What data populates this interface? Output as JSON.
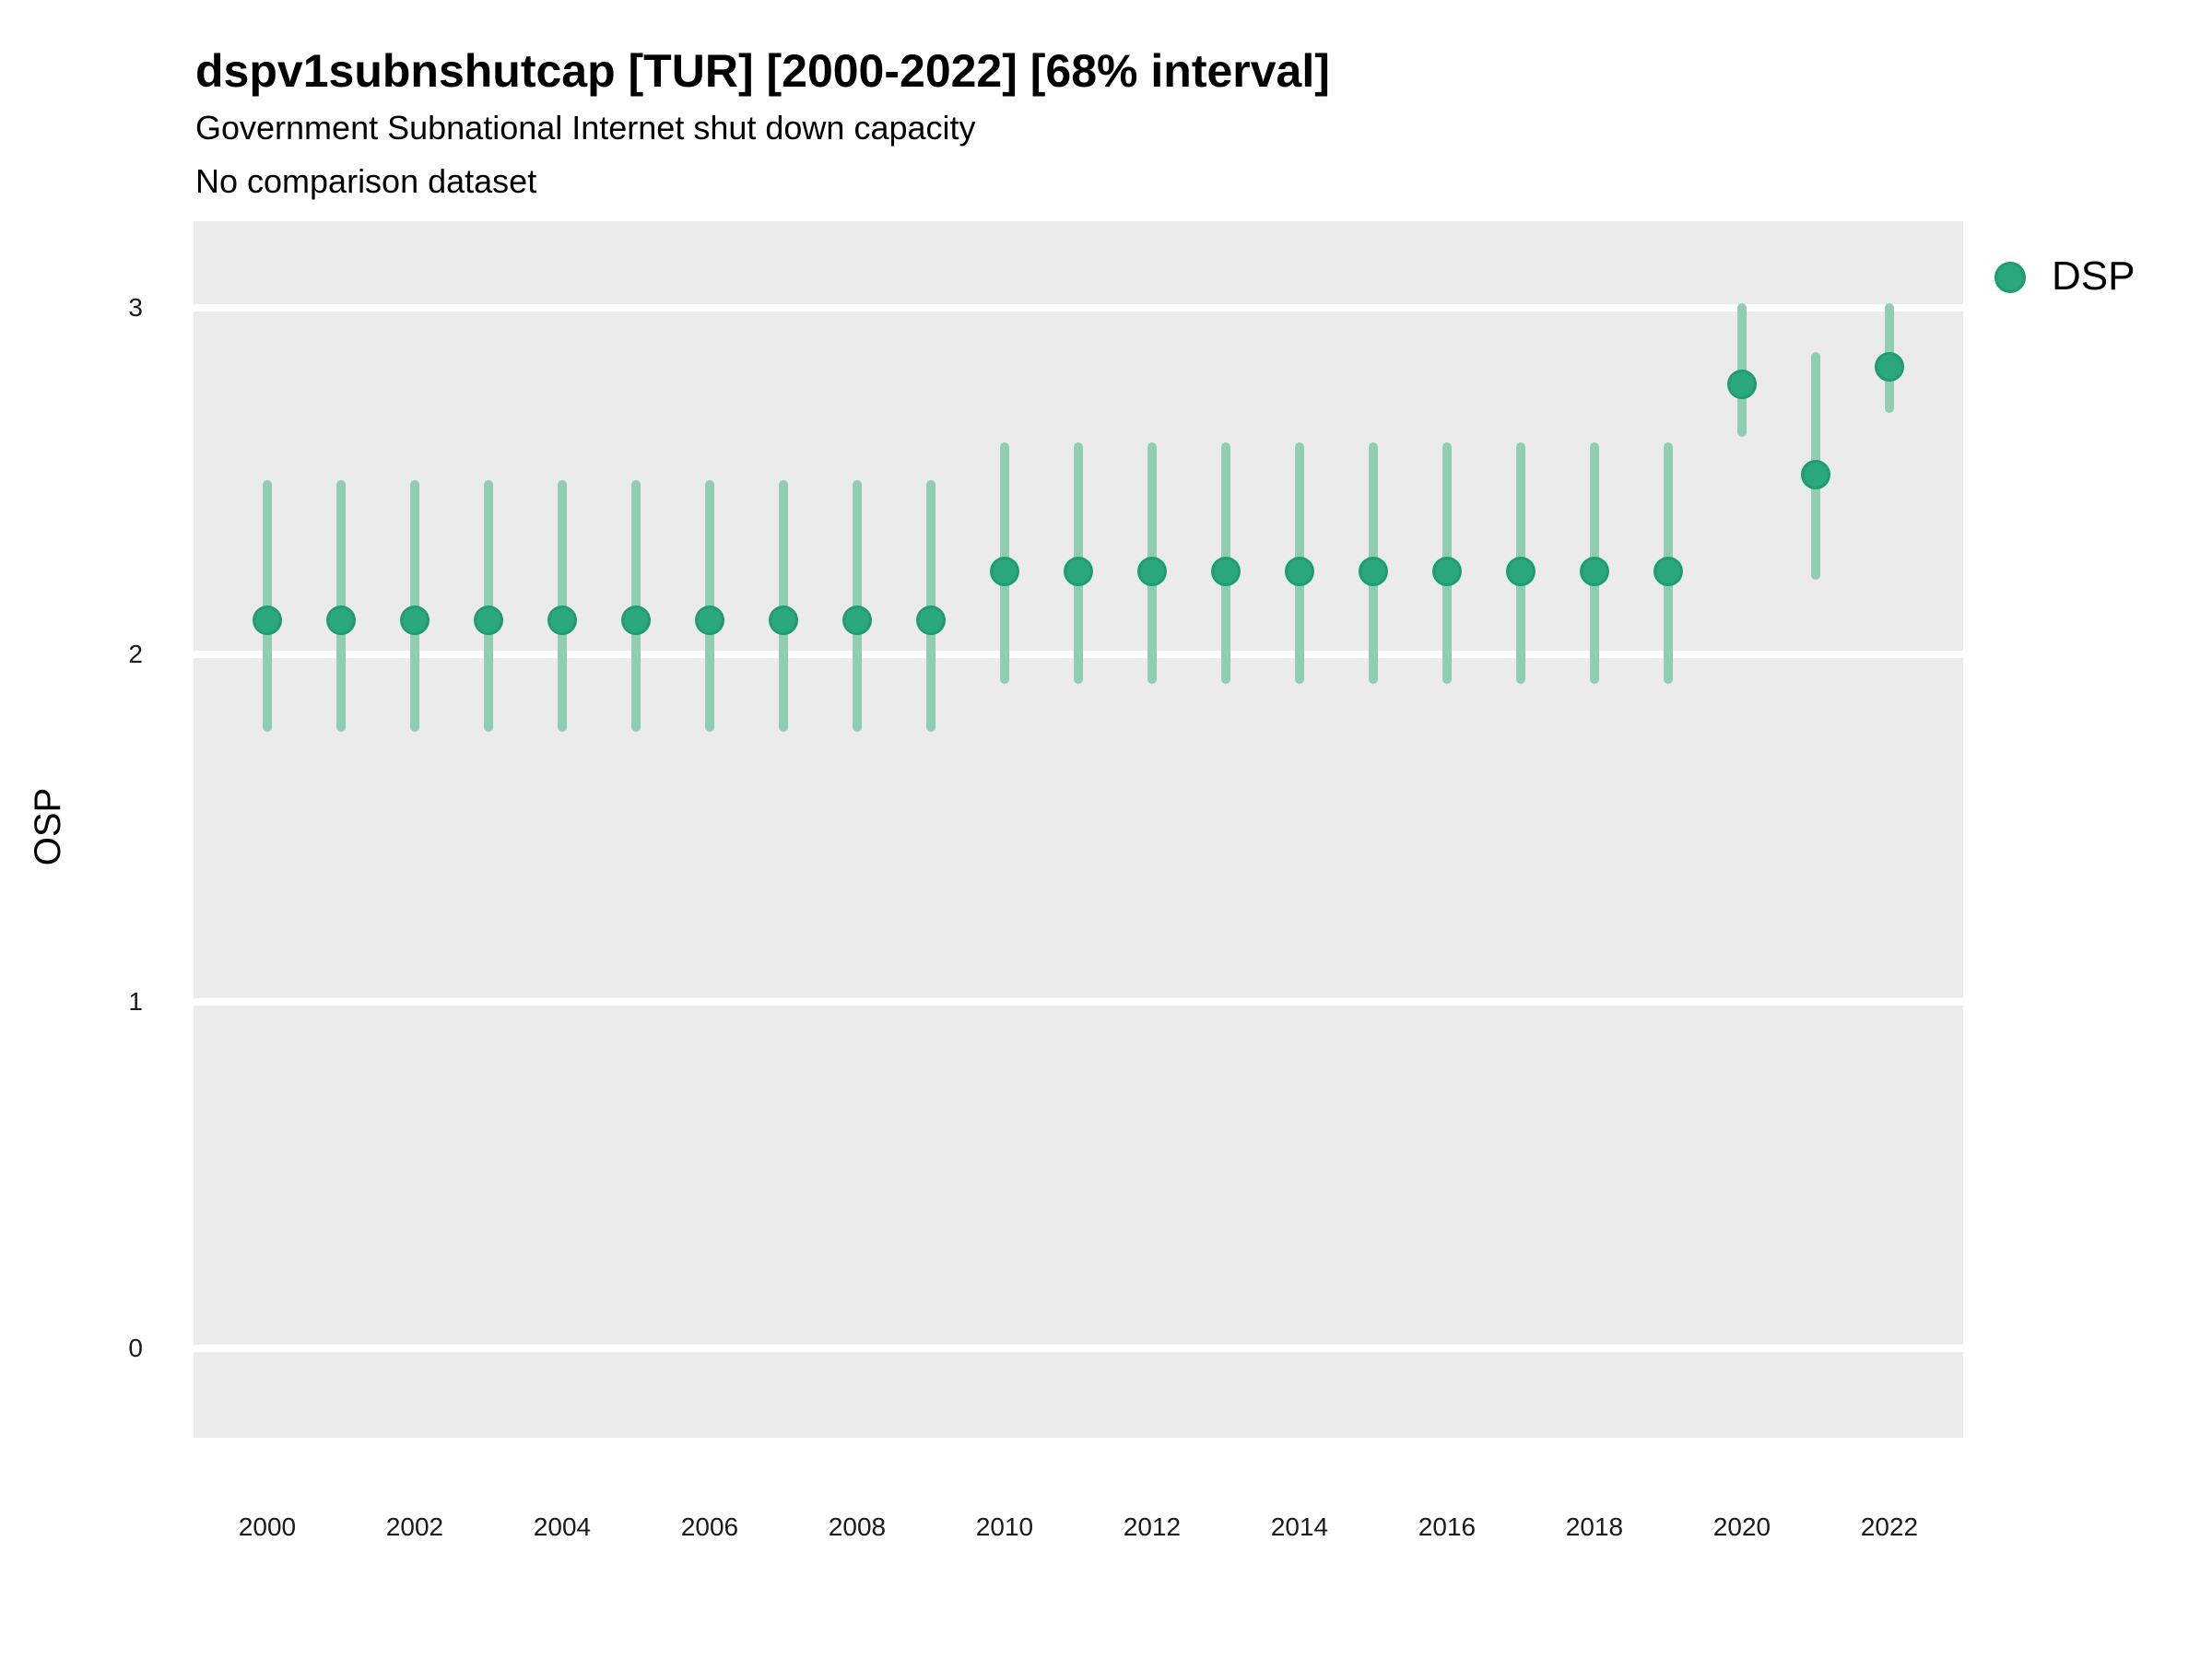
{
  "header": {
    "title": "dspv1subnshutcap [TUR] [2000-2022] [68% interval]",
    "subtitle": "Government Subnational Internet shut down capacity",
    "comparison_note": "No comparison dataset"
  },
  "y_axis": {
    "label": "OSP",
    "tick_labels": [
      "3",
      "2",
      "1",
      "0"
    ],
    "tick_values": [
      3,
      2,
      1,
      0
    ]
  },
  "x_axis": {
    "tick_labels": [
      "2000",
      "2002",
      "2004",
      "2006",
      "2008",
      "2010",
      "2012",
      "2014",
      "2016",
      "2018",
      "2020",
      "2022"
    ],
    "tick_values": [
      2000,
      2002,
      2004,
      2006,
      2008,
      2010,
      2012,
      2014,
      2016,
      2018,
      2020,
      2022
    ]
  },
  "legend": {
    "label": "DSP"
  },
  "colors": {
    "point": "#2BA77D",
    "point_border": "#1F9C72",
    "interval": "#8FCDB5",
    "panel_background": "#EBEBEB",
    "gridline": "#FFFFFF"
  },
  "chart_data": {
    "type": "scatter",
    "subtype": "point-estimate-with-interval",
    "title": "dspv1subnshutcap [TUR] [2000-2022] [68% interval]",
    "subtitle": "Government Subnational Internet shut down capacity",
    "note": "No comparison dataset",
    "xlabel": "",
    "ylabel": "OSP",
    "interval_level": "68%",
    "ylim": [
      -0.26,
      3.25
    ],
    "y_ticks": [
      0,
      1,
      2,
      3
    ],
    "grid": "horizontal-major-only",
    "legend_position": "right",
    "x": [
      2000,
      2001,
      2002,
      2003,
      2004,
      2005,
      2006,
      2007,
      2008,
      2009,
      2010,
      2011,
      2012,
      2013,
      2014,
      2015,
      2016,
      2017,
      2018,
      2019,
      2020,
      2021,
      2022
    ],
    "series": [
      {
        "name": "DSP",
        "estimate": [
          2.1,
          2.1,
          2.1,
          2.1,
          2.1,
          2.1,
          2.1,
          2.1,
          2.1,
          2.1,
          2.24,
          2.24,
          2.24,
          2.24,
          2.24,
          2.24,
          2.24,
          2.24,
          2.24,
          2.24,
          2.78,
          2.52,
          2.83
        ],
        "lower": [
          1.79,
          1.79,
          1.79,
          1.79,
          1.79,
          1.79,
          1.79,
          1.79,
          1.79,
          1.79,
          1.93,
          1.93,
          1.93,
          1.93,
          1.93,
          1.93,
          1.93,
          1.93,
          1.93,
          1.93,
          2.64,
          2.23,
          2.71
        ],
        "upper": [
          2.49,
          2.49,
          2.49,
          2.49,
          2.49,
          2.49,
          2.49,
          2.49,
          2.49,
          2.49,
          2.6,
          2.6,
          2.6,
          2.6,
          2.6,
          2.6,
          2.6,
          2.6,
          2.6,
          2.6,
          3.0,
          2.86,
          3.0
        ]
      }
    ]
  }
}
